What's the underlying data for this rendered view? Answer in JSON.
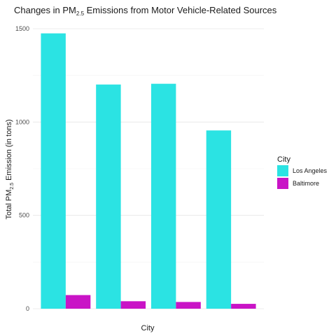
{
  "chart_data": {
    "type": "bar",
    "title": {
      "main": "Changes in PM",
      "sub": "2.5",
      "rest": " Emissions from Motor Vehicle-Related Sources"
    },
    "xlabel": "City",
    "ylabel": {
      "main": "Total PM",
      "sub": "2.5",
      "rest": " Emission (in tons)"
    },
    "categories": [
      "",
      "",
      "",
      ""
    ],
    "series": [
      {
        "name": "Los Angeles",
        "color": "#2BE3E3",
        "values": [
          1475,
          1201,
          1205,
          955
        ]
      },
      {
        "name": "Baltimore",
        "color": "#C914C6",
        "values": [
          73,
          40,
          36,
          26
        ]
      }
    ],
    "yticks": [
      0,
      500,
      1000,
      1500
    ],
    "ylim": [
      0,
      1500
    ],
    "grid": true,
    "legend": {
      "title": "City",
      "position": "right"
    }
  }
}
